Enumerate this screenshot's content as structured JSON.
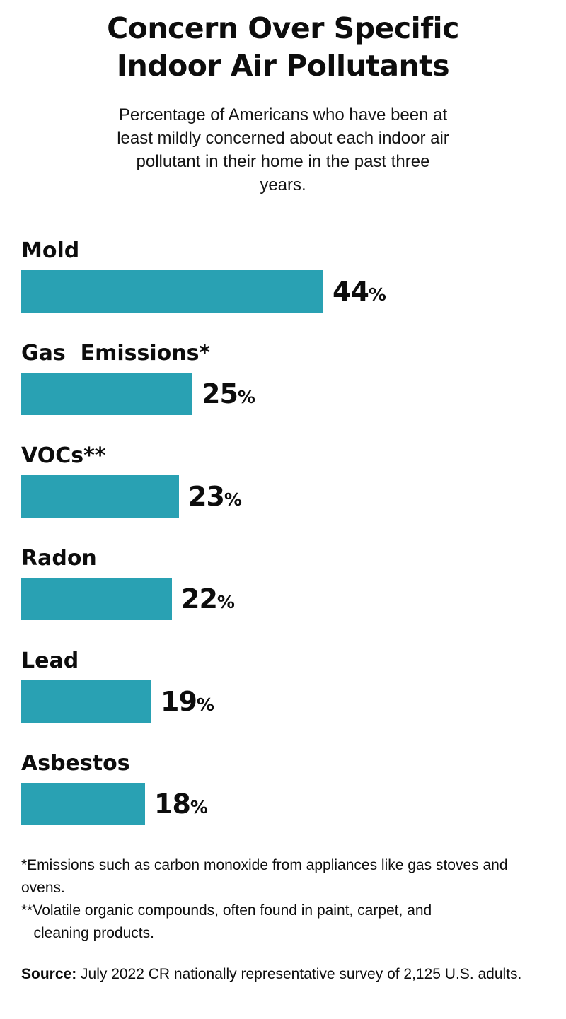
{
  "header": {
    "title": "Concern Over Specific\nIndoor Air Pollutants",
    "subtitle": "Percentage of Americans who have been at\nleast mildly concerned about each indoor air\npollutant in their home in the past three\nyears."
  },
  "chart_data": {
    "type": "bar",
    "orientation": "horizontal",
    "title": "Concern Over Specific Indoor Air Pollutants",
    "subtitle": "Percentage of Americans who have been at least mildly concerned about each indoor air pollutant in their home in the past three years.",
    "categories": [
      "Mold",
      "Gas  Emissions*",
      "VOCs**",
      "Radon",
      "Lead",
      "Asbestos"
    ],
    "values": [
      44,
      25,
      23,
      22,
      19,
      18
    ],
    "unit": "%",
    "xlim": [
      0,
      50
    ],
    "grid": false,
    "legend": false,
    "bar_color": "#29a1b3",
    "value_labels": [
      "44%",
      "25%",
      "23%",
      "22%",
      "19%",
      "18%"
    ]
  },
  "labels": {
    "percent_sign": "%"
  },
  "footnotes": [
    "*Emissions such as carbon monoxide from appliances like gas stoves and ovens.",
    "**Volatile organic compounds, often found in paint, carpet, and\n   cleaning products."
  ],
  "source": {
    "label": "Source:",
    "text": " July 2022 CR nationally representative survey of 2,125 U.S. adults."
  }
}
